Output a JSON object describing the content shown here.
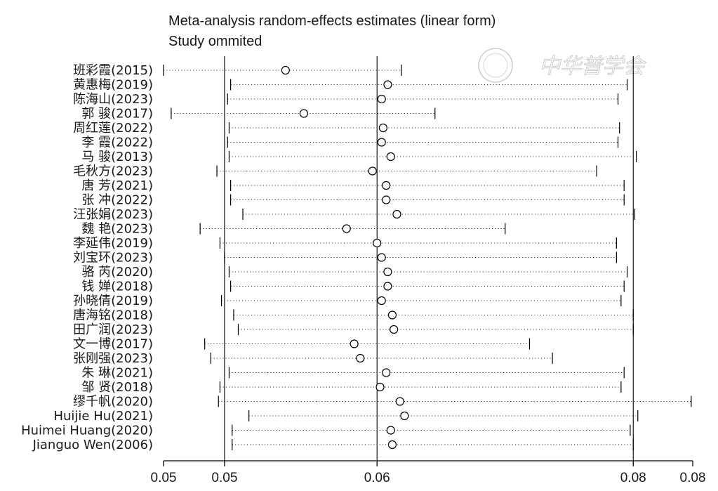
{
  "chart_data": {
    "type": "forest",
    "title": "Meta-analysis random-effects estimates (linear form)",
    "subtitle": "Study ommited",
    "watermark": "中华普学会",
    "xlim": [
      0.046,
      0.0807
    ],
    "x_ticks": [
      {
        "value": 0.046,
        "label": "0.05"
      },
      {
        "value": 0.05,
        "label": "0.05"
      },
      {
        "value": 0.06,
        "label": "0.06"
      },
      {
        "value": 0.0768,
        "label": "0.08"
      },
      {
        "value": 0.0807,
        "label": "0.08"
      }
    ],
    "reference_lines": [
      0.05,
      0.06,
      0.0768
    ],
    "studies": [
      {
        "label": "班彩霞(2015)",
        "estimate": 0.054,
        "lower": 0.046,
        "upper": 0.0616
      },
      {
        "label": "黄惠梅(2019)",
        "estimate": 0.0607,
        "lower": 0.0504,
        "upper": 0.0764
      },
      {
        "label": "陈海山(2023)",
        "estimate": 0.0603,
        "lower": 0.0502,
        "upper": 0.0758
      },
      {
        "label": "郭 骏(2017)",
        "estimate": 0.0552,
        "lower": 0.0465,
        "upper": 0.0638
      },
      {
        "label": "周红莲(2022)",
        "estimate": 0.0604,
        "lower": 0.0503,
        "upper": 0.0759
      },
      {
        "label": "李 霞(2022)",
        "estimate": 0.0603,
        "lower": 0.0502,
        "upper": 0.0758
      },
      {
        "label": "马 骏(2013)",
        "estimate": 0.0609,
        "lower": 0.0503,
        "upper": 0.077
      },
      {
        "label": "毛秋方(2023)",
        "estimate": 0.0597,
        "lower": 0.0495,
        "upper": 0.0744
      },
      {
        "label": "唐 芳(2021)",
        "estimate": 0.0606,
        "lower": 0.0504,
        "upper": 0.0762
      },
      {
        "label": "张 冲(2022)",
        "estimate": 0.0606,
        "lower": 0.0504,
        "upper": 0.0762
      },
      {
        "label": "汪张娟(2023)",
        "estimate": 0.0613,
        "lower": 0.0512,
        "upper": 0.0769
      },
      {
        "label": "魏 艳(2023)",
        "estimate": 0.058,
        "lower": 0.0484,
        "upper": 0.0684
      },
      {
        "label": "李延伟(2019)",
        "estimate": 0.06,
        "lower": 0.0497,
        "upper": 0.0757
      },
      {
        "label": "刘宝环(2023)",
        "estimate": 0.0603,
        "lower": 0.05,
        "upper": 0.0757
      },
      {
        "label": "骆 芮(2020)",
        "estimate": 0.0607,
        "lower": 0.0503,
        "upper": 0.0764
      },
      {
        "label": "钱 婵(2018)",
        "estimate": 0.0607,
        "lower": 0.0504,
        "upper": 0.0762
      },
      {
        "label": "孙晓倩(2019)",
        "estimate": 0.0603,
        "lower": 0.0498,
        "upper": 0.076
      },
      {
        "label": "唐海铭(2018)",
        "estimate": 0.061,
        "lower": 0.0506,
        "upper": 0.0768
      },
      {
        "label": "田广润(2023)",
        "estimate": 0.0611,
        "lower": 0.0509,
        "upper": 0.0768
      },
      {
        "label": "文一博(2017)",
        "estimate": 0.0585,
        "lower": 0.0487,
        "upper": 0.07
      },
      {
        "label": "张刚强(2023)",
        "estimate": 0.0589,
        "lower": 0.0491,
        "upper": 0.0715
      },
      {
        "label": "朱 琳(2021)",
        "estimate": 0.0606,
        "lower": 0.0503,
        "upper": 0.0762
      },
      {
        "label": "邹 贤(2018)",
        "estimate": 0.0602,
        "lower": 0.0497,
        "upper": 0.076
      },
      {
        "label": "缪千帆(2020)",
        "estimate": 0.0615,
        "lower": 0.0496,
        "upper": 0.0806
      },
      {
        "label": "Huijie Hu(2021)",
        "estimate": 0.0618,
        "lower": 0.0516,
        "upper": 0.0771
      },
      {
        "label": "Huimei Huang(2020)",
        "estimate": 0.0609,
        "lower": 0.0505,
        "upper": 0.0766
      },
      {
        "label": "Jianguo Wen(2006)",
        "estimate": 0.061,
        "lower": 0.0505,
        "upper": 0.0768
      }
    ]
  }
}
